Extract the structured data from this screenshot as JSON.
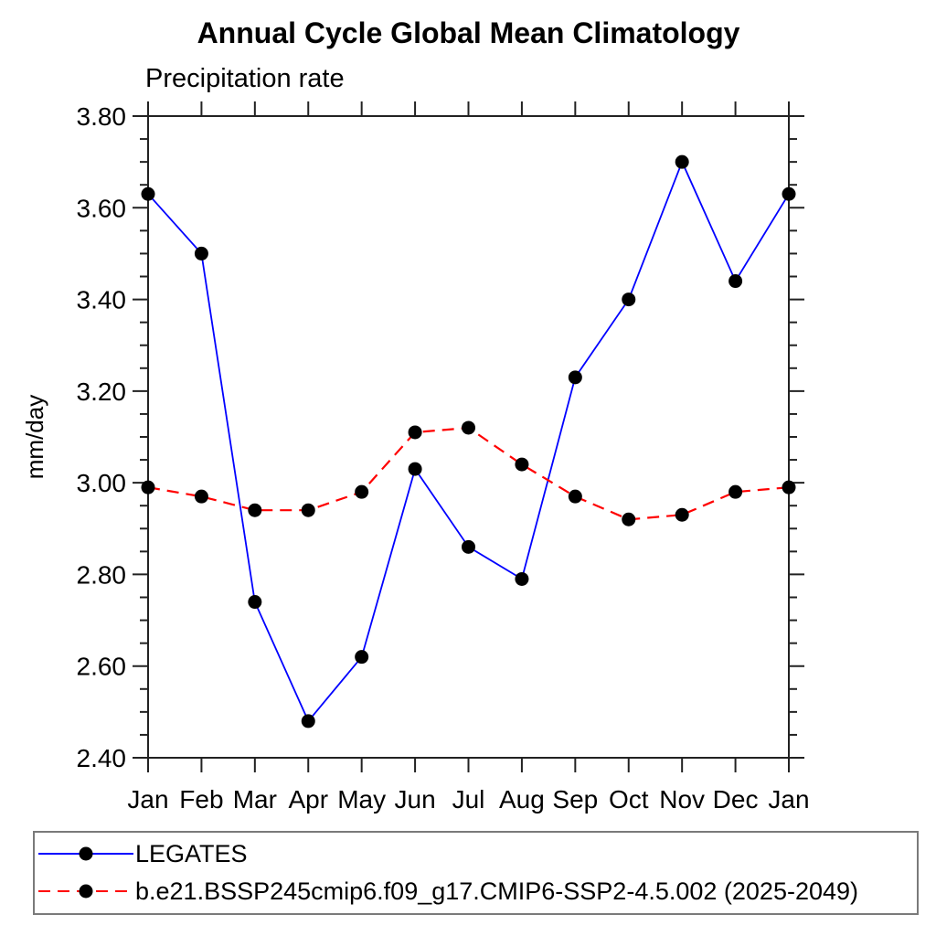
{
  "chart_data": {
    "type": "line",
    "title": "Annual Cycle Global Mean Climatology",
    "subtitle": "Precipitation rate",
    "ylabel": "mm/day",
    "xlabel": "",
    "categories": [
      "Jan",
      "Feb",
      "Mar",
      "Apr",
      "May",
      "Jun",
      "Jul",
      "Aug",
      "Sep",
      "Oct",
      "Nov",
      "Dec",
      "Jan"
    ],
    "ylim": [
      2.4,
      3.8
    ],
    "ytick_step": 0.2,
    "yminor_step": 0.05,
    "ytick_labels": [
      "2.40",
      "2.60",
      "2.80",
      "3.00",
      "3.20",
      "3.40",
      "3.60",
      "3.80"
    ],
    "grid": false,
    "legend_position": "bottom",
    "axis_color": "#222222",
    "series": [
      {
        "name": "LEGATES",
        "color": "#0000ff",
        "line_style": "solid",
        "marker": "filled-circle",
        "marker_color": "#000000",
        "values": [
          3.63,
          3.5,
          2.74,
          2.48,
          2.62,
          3.03,
          2.86,
          2.79,
          3.23,
          3.4,
          3.7,
          3.44,
          3.63
        ]
      },
      {
        "name": "b.e21.BSSP245cmip6.f09_g17.CMIP6-SSP2-4.5.002 (2025-2049)",
        "color": "#ff0000",
        "line_style": "dashed",
        "marker": "filled-circle",
        "marker_color": "#000000",
        "values": [
          2.99,
          2.97,
          2.94,
          2.94,
          2.98,
          3.11,
          3.12,
          3.04,
          2.97,
          2.92,
          2.93,
          2.98,
          2.99
        ]
      }
    ]
  }
}
